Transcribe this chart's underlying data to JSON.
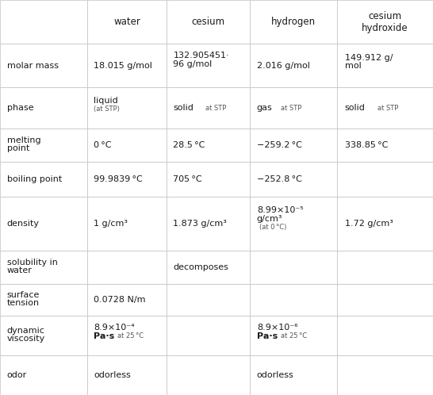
{
  "col_headers": [
    "",
    "water",
    "cesium",
    "hydrogen",
    "cesium\nhydroxide"
  ],
  "row_labels": [
    "molar mass",
    "phase",
    "melting\npoint",
    "boiling point",
    "density",
    "solubility in\nwater",
    "surface\ntension",
    "dynamic\nviscosity",
    "odor"
  ],
  "background_color": "#ffffff",
  "grid_color": "#c0c0c0",
  "text_color": "#1a1a1a",
  "small_text_color": "#555555",
  "font_size": 8.0,
  "small_font_size": 6.0,
  "header_font_size": 8.5
}
